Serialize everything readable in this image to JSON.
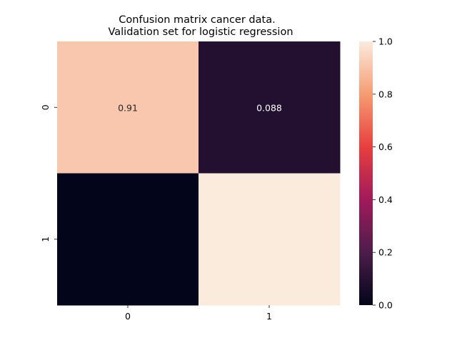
{
  "chart_data": {
    "type": "heatmap",
    "title_line1": "Confusion matrix cancer data.",
    "title_line2": "Validation set for logistic regression",
    "xlabel": "",
    "ylabel": "",
    "x_categories": [
      "0",
      "1"
    ],
    "y_categories": [
      "0",
      "1"
    ],
    "values": [
      [
        0.91,
        0.088
      ],
      [
        0.0,
        1.0
      ]
    ],
    "annotations": [
      [
        "0.91",
        "0.088"
      ],
      [
        "",
        ""
      ]
    ],
    "colorbar": {
      "range": [
        0.0,
        1.0
      ],
      "ticks": [
        "0.0",
        "0.2",
        "0.4",
        "0.6",
        "0.8",
        "1.0"
      ],
      "colormap": "rocket",
      "stops": [
        "#03051a",
        "#4c1d4b",
        "#a11a5b",
        "#e83f3f",
        "#f69c73",
        "#faebdd"
      ]
    }
  }
}
